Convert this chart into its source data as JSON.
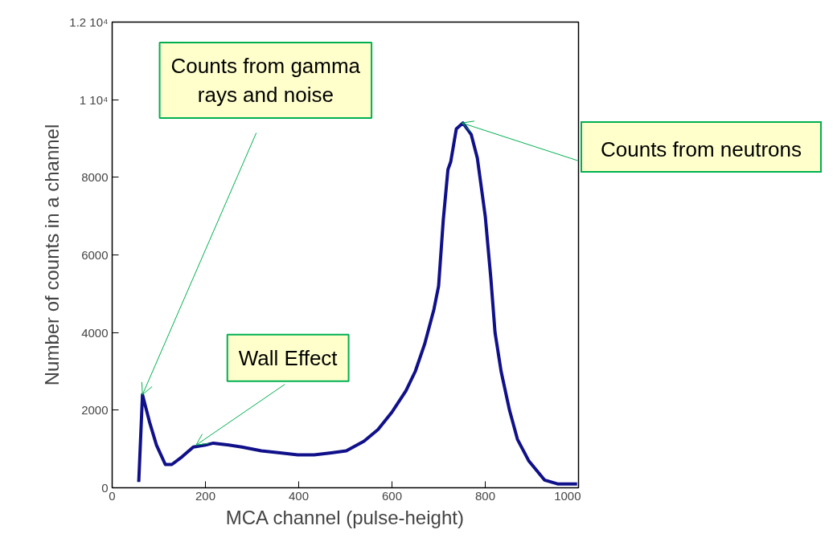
{
  "chart_data": {
    "type": "line",
    "xlabel": "MCA channel (pulse-height)",
    "ylabel": "Number of counts in a channel",
    "x": [
      57,
      65,
      80,
      95,
      114,
      128,
      150,
      174,
      200,
      217,
      250,
      278,
      320,
      360,
      398,
      433,
      470,
      502,
      540,
      570,
      600,
      630,
      650,
      670,
      690,
      700,
      710,
      720,
      726,
      738,
      752,
      770,
      783,
      800,
      812,
      821,
      834,
      852,
      869,
      893,
      927,
      955,
      997
    ],
    "series": [
      {
        "color": "#10108a",
        "values": [
          150,
          2400,
          1700,
          1100,
          600,
          600,
          800,
          1050,
          1100,
          1150,
          1100,
          1050,
          950,
          900,
          850,
          850,
          900,
          950,
          1200,
          1500,
          1950,
          2500,
          3000,
          3700,
          4600,
          5200,
          6900,
          8200,
          8400,
          9250,
          9400,
          9100,
          8500,
          7000,
          5400,
          4000,
          3000,
          2000,
          1250,
          700,
          200,
          100,
          100
        ]
      }
    ],
    "xlim": [
      0,
      1000
    ],
    "xticks": [
      0,
      200,
      400,
      600,
      800,
      1000
    ],
    "ylim": [
      0,
      12000
    ],
    "yticks": [
      0,
      2000,
      4000,
      6000,
      8000,
      {
        "value": 10000,
        "label": "1 10⁴"
      },
      {
        "value": 12000,
        "label": "1.2 10⁴"
      }
    ],
    "grid": false,
    "marker": "none",
    "line_style": "solid",
    "annotations": [
      {
        "text": "Counts from gamma rays and noise",
        "x": 65,
        "y": 2400
      },
      {
        "text": "Wall Effect",
        "x": 180,
        "y": 1100
      },
      {
        "text": "Counts from neutrons",
        "x": 750,
        "y": 9400
      }
    ]
  }
}
